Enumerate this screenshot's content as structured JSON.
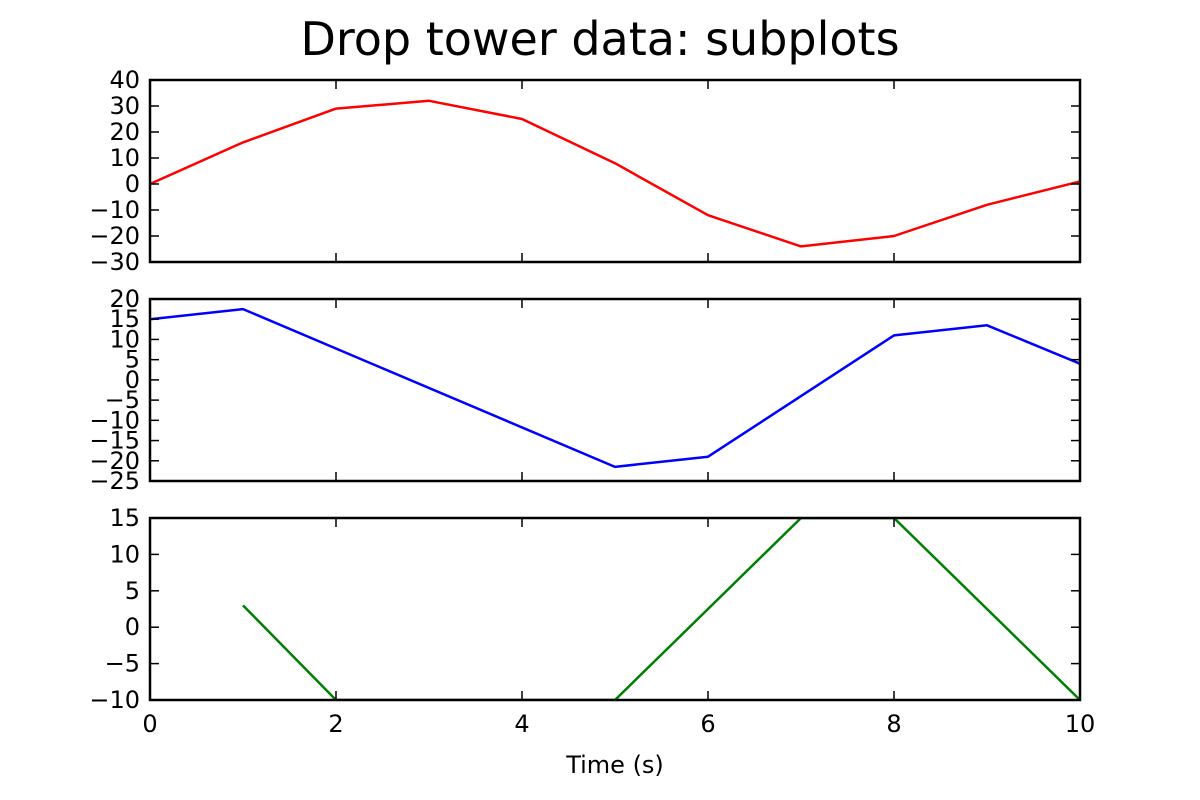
{
  "chart_data": {
    "type": "line",
    "title": "Drop tower data: subplots",
    "xlabel": "Time (s)",
    "xlim": [
      0,
      10
    ],
    "xticks": [
      0,
      2,
      4,
      6,
      8,
      10
    ],
    "grid": false,
    "subplots": [
      {
        "color": "#ff0000",
        "ylim": [
          -30,
          40
        ],
        "yticks": [
          -30,
          -20,
          -10,
          0,
          10,
          20,
          30,
          40
        ],
        "x": [
          0,
          1,
          2,
          3,
          4,
          5,
          6,
          7,
          8,
          9,
          10
        ],
        "y": [
          0,
          16,
          29,
          32,
          25,
          8,
          -12,
          -24,
          -20,
          -8,
          1
        ]
      },
      {
        "color": "#0000ff",
        "ylim": [
          -25,
          20
        ],
        "yticks": [
          -25,
          -20,
          -15,
          -10,
          -5,
          0,
          5,
          10,
          15,
          20
        ],
        "x": [
          0,
          1,
          5,
          6,
          8,
          9,
          10
        ],
        "y": [
          15,
          17.5,
          -21.5,
          -19,
          11,
          13.5,
          4
        ]
      },
      {
        "color": "#008000",
        "ylim": [
          -10,
          15
        ],
        "yticks": [
          -10,
          -5,
          0,
          5,
          10,
          15
        ],
        "x": [
          1,
          2,
          5,
          7,
          8,
          10
        ],
        "y": [
          3,
          -10,
          -10,
          15,
          15,
          -10
        ]
      }
    ]
  }
}
